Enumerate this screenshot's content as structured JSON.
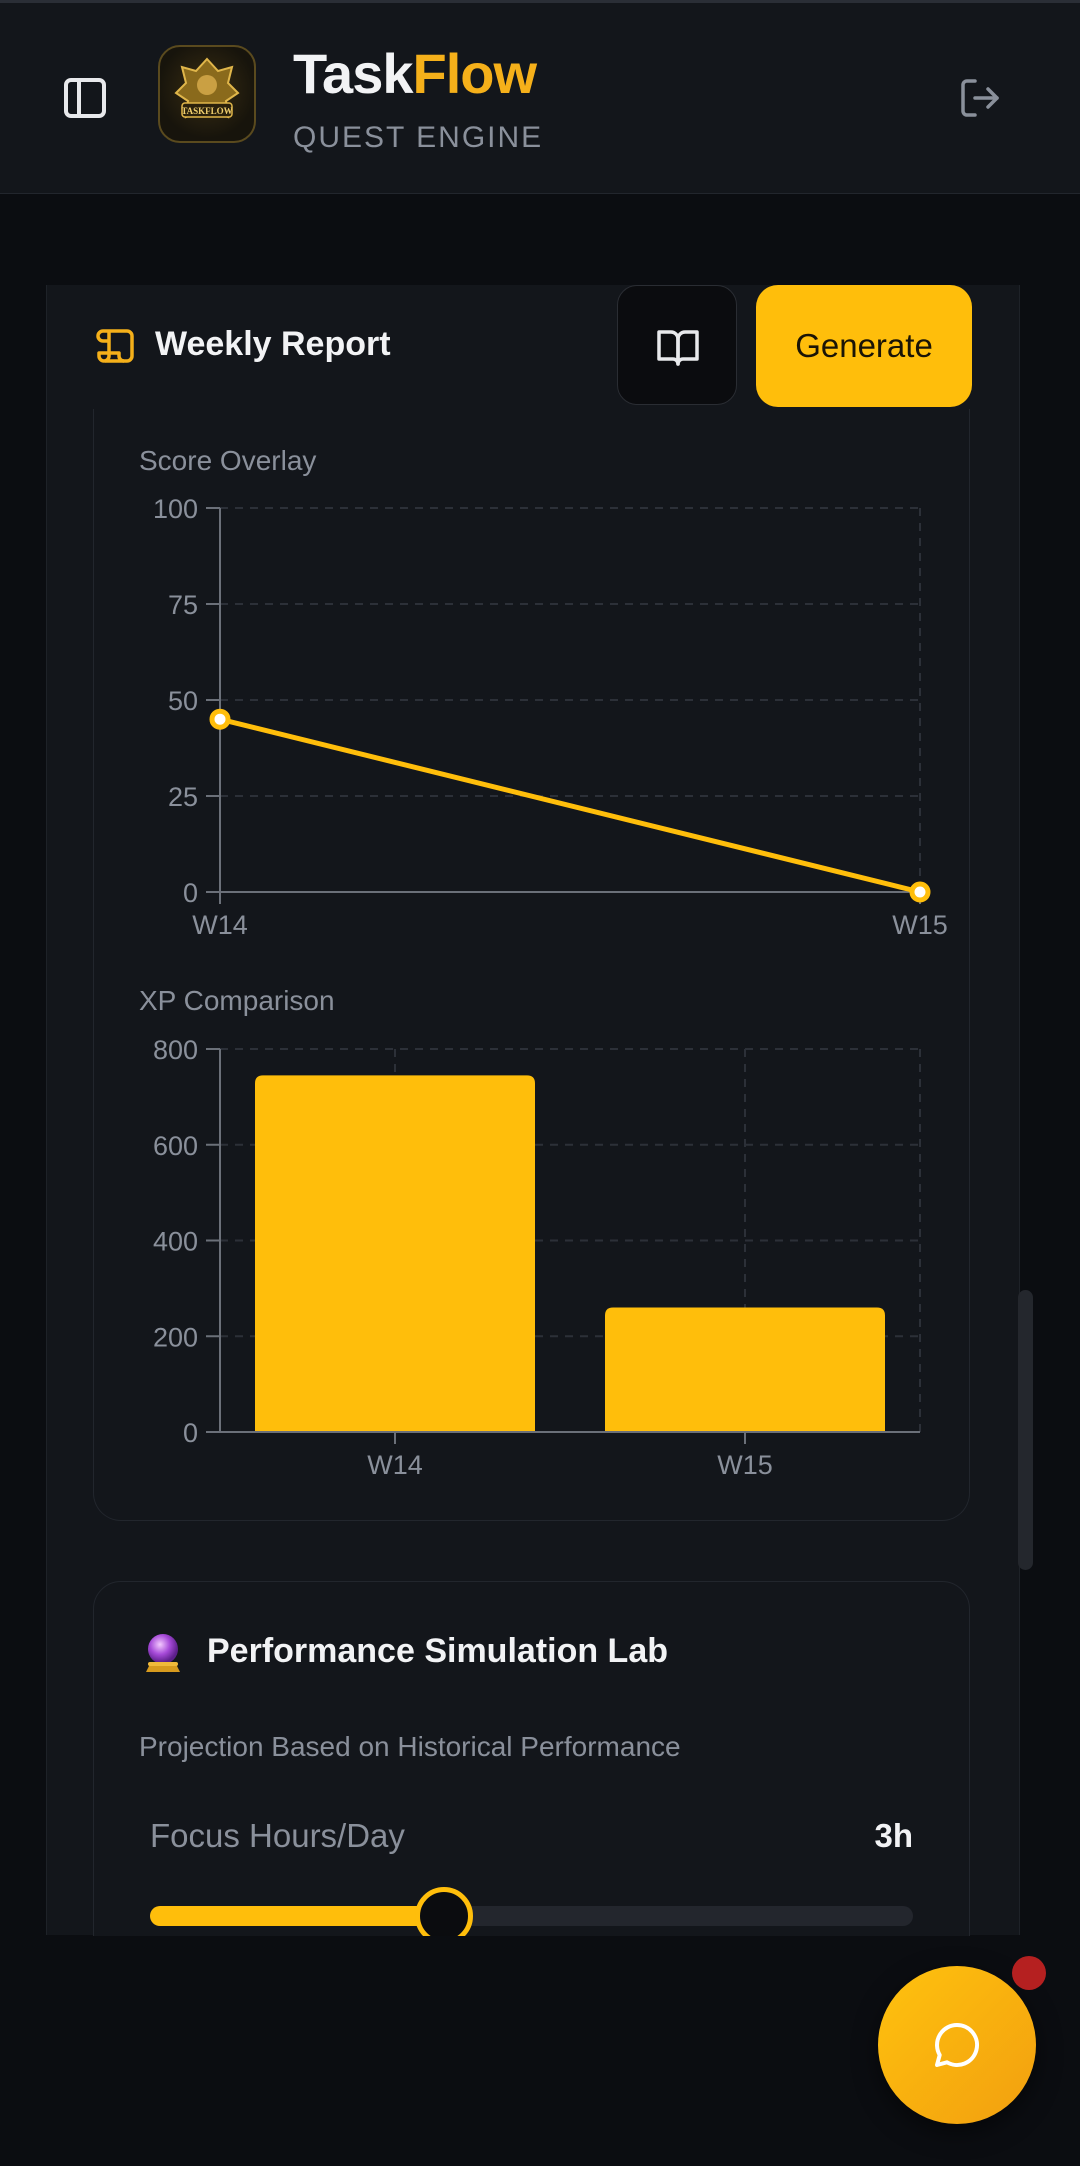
{
  "header": {
    "brand_task": "Task",
    "brand_flow": "Flow",
    "subtitle": "QUEST ENGINE",
    "logo_text": "TASKFLOW"
  },
  "report": {
    "title": "Weekly Report",
    "generate_label": "Generate"
  },
  "chart_data": [
    {
      "type": "line",
      "title": "Score Overlay",
      "x": [
        "W14",
        "W15"
      ],
      "series": [
        {
          "values": [
            45,
            0
          ]
        }
      ],
      "ylim": [
        0,
        100
      ],
      "yticks": [
        0,
        25,
        50,
        75,
        100
      ],
      "grid": true,
      "color": "#ffbe0b"
    },
    {
      "type": "bar",
      "title": "XP Comparison",
      "categories": [
        "W14",
        "W15"
      ],
      "values": [
        745,
        260
      ],
      "ylim": [
        0,
        800
      ],
      "yticks": [
        0,
        200,
        400,
        600,
        800
      ],
      "grid": true,
      "color": "#ffbe0b"
    }
  ],
  "simulation": {
    "title": "Performance Simulation Lab",
    "subtitle": "Projection Based on Historical Performance",
    "focus_label": "Focus Hours/Day",
    "focus_value": "3h",
    "focus_fraction": 0.385
  },
  "colors": {
    "accent": "#ffbe0b",
    "background": "#0b0d11",
    "panel": "#13161b",
    "notification": "#b52020"
  },
  "icons": {
    "sidebar": "sidebar-toggle-icon",
    "logout": "logout-icon",
    "report": "scroll-icon",
    "book": "book-open-icon",
    "simulation": "crystal-ball-icon",
    "chat": "chat-bubble-icon"
  }
}
